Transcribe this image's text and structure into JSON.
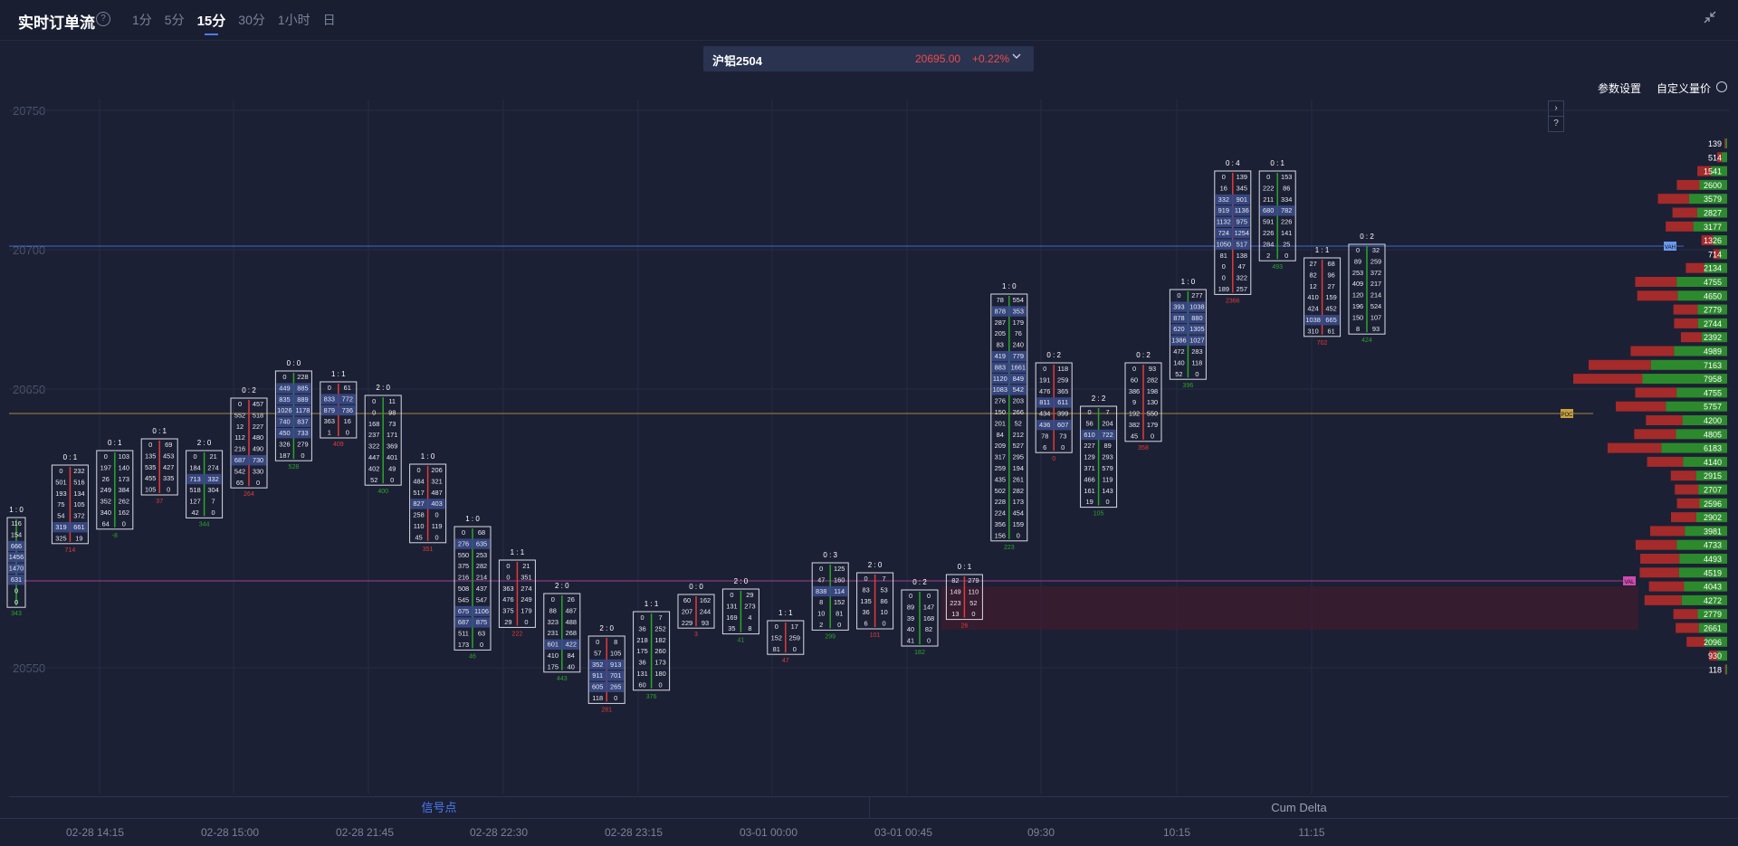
{
  "header": {
    "title": "实时订单流",
    "help_glyph": "?",
    "tabs": [
      "1分",
      "5分",
      "15分",
      "30分",
      "1小时",
      "日"
    ],
    "active_tab": "15分"
  },
  "symbol": {
    "name": "沪铝2504",
    "price": "20695.00",
    "change": "+0.22%"
  },
  "toolbar": {
    "params_label": "参数设置",
    "custom_label": "自定义量价"
  },
  "price_axis": {
    "labels": [
      "20750",
      "20700",
      "20650",
      "20550"
    ]
  },
  "bottom_tabs": {
    "left": "信号点",
    "right": "Cum Delta"
  },
  "time_axis": {
    "labels": [
      "02-28 14:15",
      "02-28 15:00",
      "02-28 21:45",
      "02-28 22:30",
      "02-28 23:15",
      "03-01 00:00",
      "03-01 00:45",
      "09:30",
      "10:15",
      "11:15"
    ]
  },
  "colors": {
    "bg": "#1c2034",
    "buy": "#2aa52a",
    "sell": "#e23a3a",
    "accent": "#4a7cf5",
    "hl_line": "#c8a040",
    "pink_line": "#c04aa8",
    "blue_line": "#4a7cf5"
  },
  "profile_volumes": [
    "139",
    "514",
    "1541",
    "2600",
    "3579",
    "2827",
    "3177",
    "1326",
    "714",
    "2134",
    "4755",
    "4650",
    "2779",
    "2744",
    "2392",
    "4989",
    "7163",
    "7958",
    "4755",
    "5757",
    "4200",
    "4805",
    "6183",
    "4140",
    "2915",
    "2707",
    "2596",
    "2902",
    "3981",
    "4733",
    "4493",
    "4519",
    "4043",
    "4272",
    "2779",
    "2661",
    "2096",
    "930",
    "118"
  ],
  "profile_markers": {
    "poc": "POC",
    "val": "VAL",
    "vah": "VAH"
  },
  "candles": [
    {
      "head": "1 : 0",
      "rows": [
        [
          "116",
          ""
        ],
        [
          "154",
          ""
        ],
        [
          "666",
          ""
        ],
        [
          "1456",
          ""
        ],
        [
          "1470",
          ""
        ],
        [
          "631",
          ""
        ],
        [
          "0",
          ""
        ],
        [
          "0",
          ""
        ]
      ],
      "delta": "343"
    },
    {
      "head": "0 : 1",
      "rows": [
        [
          "0",
          "232"
        ],
        [
          "501",
          "516"
        ],
        [
          "193",
          "134"
        ],
        [
          "75",
          "105"
        ],
        [
          "54",
          "372"
        ],
        [
          "319",
          "661"
        ],
        [
          "325",
          "19"
        ]
      ],
      "delta": "714"
    },
    {
      "head": "0 : 1",
      "rows": [
        [
          "0",
          "103"
        ],
        [
          "197",
          "140"
        ],
        [
          "26",
          "173"
        ],
        [
          "249",
          "384"
        ],
        [
          "352",
          "262"
        ],
        [
          "340",
          "162"
        ],
        [
          "64",
          "0"
        ]
      ],
      "delta": "-8"
    },
    {
      "head": "0 : 1",
      "rows": [
        [
          "0",
          "69"
        ],
        [
          "135",
          "453"
        ],
        [
          "535",
          "427"
        ],
        [
          "455",
          "335"
        ],
        [
          "105",
          "0"
        ]
      ],
      "delta": "37"
    },
    {
      "head": "2 : 0",
      "rows": [
        [
          "0",
          "21"
        ],
        [
          "184",
          "274"
        ],
        [
          "713",
          "332"
        ],
        [
          "518",
          "304"
        ],
        [
          "127",
          "7"
        ],
        [
          "42",
          "0"
        ]
      ],
      "delta": "344"
    },
    {
      "head": "0 : 2",
      "rows": [
        [
          "0",
          "457"
        ],
        [
          "552",
          "518"
        ],
        [
          "12",
          "227"
        ],
        [
          "112",
          "480"
        ],
        [
          "216",
          "490"
        ],
        [
          "687",
          "730"
        ],
        [
          "542",
          "330"
        ],
        [
          "65",
          "0"
        ]
      ],
      "delta": "264"
    },
    {
      "head": "0 : 0",
      "rows": [
        [
          "0",
          "228"
        ],
        [
          "449",
          "885"
        ],
        [
          "835",
          "889"
        ],
        [
          "1026",
          "1178"
        ],
        [
          "740",
          "837"
        ],
        [
          "450",
          "733"
        ],
        [
          "326",
          "279"
        ],
        [
          "187",
          "0"
        ]
      ],
      "delta": "528"
    },
    {
      "head": "1 : 1",
      "rows": [
        [
          "0",
          "61"
        ],
        [
          "833",
          "772"
        ],
        [
          "879",
          "736"
        ],
        [
          "363",
          "16"
        ],
        [
          "1",
          "0"
        ]
      ],
      "delta": "409"
    },
    {
      "head": "2 : 0",
      "rows": [
        [
          "0",
          "11"
        ],
        [
          "0",
          "98"
        ],
        [
          "168",
          "73"
        ],
        [
          "237",
          "171"
        ],
        [
          "322",
          "369"
        ],
        [
          "447",
          "401"
        ],
        [
          "402",
          "49"
        ],
        [
          "52",
          "0"
        ]
      ],
      "delta": "400"
    },
    {
      "head": "1 : 0",
      "rows": [
        [
          "0",
          "206"
        ],
        [
          "484",
          "321"
        ],
        [
          "517",
          "487"
        ],
        [
          "827",
          "403"
        ],
        [
          "258",
          "0"
        ],
        [
          "110",
          "119"
        ],
        [
          "45",
          "0"
        ]
      ],
      "delta": "351"
    },
    {
      "head": "1 : 0",
      "rows": [
        [
          "0",
          "68"
        ],
        [
          "276",
          "635"
        ],
        [
          "550",
          "253"
        ],
        [
          "375",
          "282"
        ],
        [
          "216",
          "214"
        ],
        [
          "508",
          "437"
        ],
        [
          "545",
          "547"
        ],
        [
          "675",
          "1106"
        ],
        [
          "687",
          "875"
        ],
        [
          "511",
          "63"
        ],
        [
          "173",
          "0"
        ]
      ],
      "delta": "46"
    },
    {
      "head": "1 : 1",
      "rows": [
        [
          "0",
          "21"
        ],
        [
          "0",
          "351"
        ],
        [
          "363",
          "274"
        ],
        [
          "476",
          "249"
        ],
        [
          "375",
          "179"
        ],
        [
          "29",
          "0"
        ]
      ],
      "delta": "222"
    },
    {
      "head": "2 : 0",
      "rows": [
        [
          "0",
          "26"
        ],
        [
          "88",
          "487"
        ],
        [
          "323",
          "488"
        ],
        [
          "231",
          "268"
        ],
        [
          "601",
          "422"
        ],
        [
          "410",
          "84"
        ],
        [
          "175",
          "40"
        ]
      ],
      "delta": "443"
    },
    {
      "head": "2 : 0",
      "rows": [
        [
          "0",
          "8"
        ],
        [
          "57",
          "105"
        ],
        [
          "352",
          "913"
        ],
        [
          "911",
          "701"
        ],
        [
          "605",
          "265"
        ],
        [
          "118",
          "0"
        ]
      ],
      "delta": "281"
    },
    {
      "head": "1 : 1",
      "rows": [
        [
          "0",
          "7"
        ],
        [
          "36",
          "252"
        ],
        [
          "218",
          "182"
        ],
        [
          "175",
          "260"
        ],
        [
          "36",
          "173"
        ],
        [
          "131",
          "180"
        ],
        [
          "60",
          "0"
        ]
      ],
      "delta": "376"
    },
    {
      "head": "0 : 0",
      "rows": [
        [
          "60",
          "162"
        ],
        [
          "207",
          "244"
        ],
        [
          "229",
          "93"
        ]
      ],
      "delta": "3"
    },
    {
      "head": "2 : 0",
      "rows": [
        [
          "0",
          "29"
        ],
        [
          "131",
          "273"
        ],
        [
          "169",
          "4"
        ],
        [
          "35",
          "8"
        ]
      ],
      "delta": "41"
    },
    {
      "head": "1 : 1",
      "rows": [
        [
          "0",
          "17"
        ],
        [
          "152",
          "259"
        ],
        [
          "81",
          "0"
        ]
      ],
      "delta": "47"
    },
    {
      "head": "0 : 3",
      "rows": [
        [
          "0",
          "125"
        ],
        [
          "47",
          "160"
        ],
        [
          "838",
          "114"
        ],
        [
          "8",
          "152"
        ],
        [
          "10",
          "81"
        ],
        [
          "2",
          "0"
        ]
      ],
      "delta": "299"
    },
    {
      "head": "2 : 0",
      "rows": [
        [
          "0",
          "7"
        ],
        [
          "83",
          "53"
        ],
        [
          "135",
          "86"
        ],
        [
          "36",
          "10"
        ],
        [
          "6",
          "0"
        ]
      ],
      "delta": "101"
    },
    {
      "head": "0 : 2",
      "rows": [
        [
          "0",
          "0"
        ],
        [
          "89",
          "147"
        ],
        [
          "39",
          "168"
        ],
        [
          "40",
          "82"
        ],
        [
          "41",
          "0"
        ]
      ],
      "delta": "182"
    },
    {
      "head": "0 : 1",
      "rows": [
        [
          "82",
          "279"
        ],
        [
          "149",
          "110"
        ],
        [
          "223",
          "52"
        ],
        [
          "13",
          "0"
        ]
      ],
      "delta": "26"
    },
    {
      "head": "1 : 0",
      "rows": [
        [
          "78",
          "554"
        ],
        [
          "878",
          "353"
        ],
        [
          "287",
          "179"
        ],
        [
          "205",
          "76"
        ],
        [
          "83",
          "240"
        ],
        [
          "419",
          "779"
        ],
        [
          "883",
          "1661"
        ],
        [
          "1120",
          "849"
        ],
        [
          "1083",
          "542"
        ],
        [
          "276",
          "203"
        ],
        [
          "150",
          "266"
        ],
        [
          "201",
          "52"
        ],
        [
          "84",
          "212"
        ],
        [
          "209",
          "527"
        ],
        [
          "317",
          "295"
        ],
        [
          "259",
          "194"
        ],
        [
          "435",
          "261"
        ],
        [
          "502",
          "282"
        ],
        [
          "228",
          "173"
        ],
        [
          "224",
          "454"
        ],
        [
          "356",
          "159"
        ],
        [
          "156",
          "0"
        ]
      ],
      "delta": "223"
    },
    {
      "head": "0 : 2",
      "rows": [
        [
          "0",
          "118"
        ],
        [
          "191",
          "259"
        ],
        [
          "476",
          "365"
        ],
        [
          "811",
          "611"
        ],
        [
          "434",
          "399"
        ],
        [
          "436",
          "607"
        ],
        [
          "78",
          "73"
        ],
        [
          "6",
          "0"
        ]
      ],
      "delta": "0"
    },
    {
      "head": "2 : 2",
      "rows": [
        [
          "0",
          "7"
        ],
        [
          "56",
          "204"
        ],
        [
          "610",
          "722"
        ],
        [
          "227",
          "89"
        ],
        [
          "129",
          "293"
        ],
        [
          "371",
          "579"
        ],
        [
          "466",
          "119"
        ],
        [
          "161",
          "143"
        ],
        [
          "19",
          "0"
        ]
      ],
      "delta": "105"
    },
    {
      "head": "0 : 2",
      "rows": [
        [
          "0",
          "93"
        ],
        [
          "60",
          "282"
        ],
        [
          "386",
          "198"
        ],
        [
          "9",
          "130"
        ],
        [
          "192",
          "550"
        ],
        [
          "382",
          "179"
        ],
        [
          "45",
          "0"
        ]
      ],
      "delta": "358"
    },
    {
      "head": "1 : 0",
      "rows": [
        [
          "0",
          "277"
        ],
        [
          "393",
          "1038"
        ],
        [
          "878",
          "880"
        ],
        [
          "620",
          "1305"
        ],
        [
          "1386",
          "1027"
        ],
        [
          "472",
          "283"
        ],
        [
          "140",
          "118"
        ],
        [
          "52",
          "0"
        ]
      ],
      "delta": "396"
    },
    {
      "head": "0 : 4",
      "rows": [
        [
          "0",
          "139"
        ],
        [
          "16",
          "345"
        ],
        [
          "332",
          "901"
        ],
        [
          "919",
          "1136"
        ],
        [
          "1132",
          "975"
        ],
        [
          "724",
          "1254"
        ],
        [
          "1050",
          "517"
        ],
        [
          "81",
          "138"
        ],
        [
          "0",
          "47"
        ],
        [
          "0",
          "322"
        ],
        [
          "189",
          "257"
        ]
      ],
      "delta": "2366"
    },
    {
      "head": "0 : 1",
      "rows": [
        [
          "0",
          "153"
        ],
        [
          "222",
          "86"
        ],
        [
          "211",
          "334"
        ],
        [
          "680",
          "782"
        ],
        [
          "591",
          "226"
        ],
        [
          "226",
          "141"
        ],
        [
          "284",
          "25"
        ],
        [
          "2",
          "0"
        ]
      ],
      "delta": "493"
    },
    {
      "head": "1 : 1",
      "rows": [
        [
          "27",
          "68"
        ],
        [
          "82",
          "96"
        ],
        [
          "12",
          "27"
        ],
        [
          "410",
          "159"
        ],
        [
          "424",
          "452"
        ],
        [
          "1038",
          "665"
        ],
        [
          "310",
          "61"
        ]
      ],
      "delta": "702"
    },
    {
      "head": "0 : 2",
      "rows": [
        [
          "0",
          "32"
        ],
        [
          "89",
          "259"
        ],
        [
          "253",
          "372"
        ],
        [
          "409",
          "217"
        ],
        [
          "120",
          "214"
        ],
        [
          "196",
          "524"
        ],
        [
          "150",
          "107"
        ],
        [
          "8",
          "93"
        ]
      ],
      "delta": "424"
    }
  ]
}
